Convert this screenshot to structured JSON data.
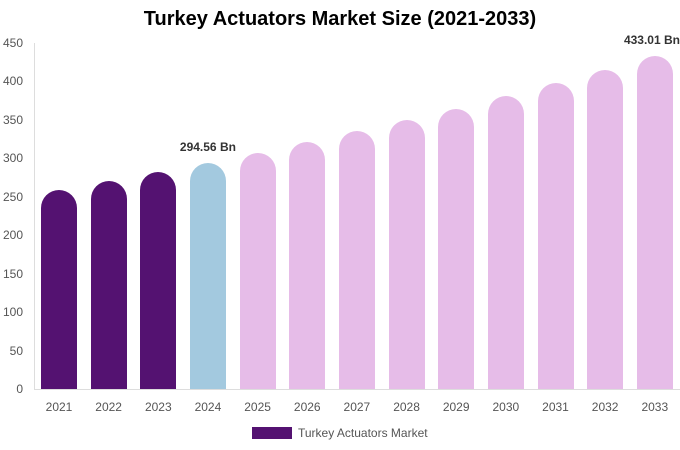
{
  "title": "Turkey Actuators Market Size (2021-2033)",
  "colors": {
    "historical": "#541271",
    "base_year": "#a3c9df",
    "forecast": "#e6bce8",
    "axis": "#dddddd",
    "tick_text": "#555555"
  },
  "yaxis": {
    "ticks": [
      "0",
      "50",
      "100",
      "150",
      "200",
      "250",
      "300",
      "350",
      "400",
      "450"
    ]
  },
  "legend": {
    "label": "Turkey Actuators Market"
  },
  "data_labels": {
    "y2024": "294.56 Bn",
    "y2033": "433.01 Bn"
  },
  "chart_data": {
    "type": "bar",
    "title": "Turkey Actuators Market Size (2021-2033)",
    "xlabel": "",
    "ylabel": "",
    "ylim": [
      0,
      450
    ],
    "grid": false,
    "legend_position": "bottom",
    "categories": [
      "2021",
      "2022",
      "2023",
      "2024",
      "2025",
      "2026",
      "2027",
      "2028",
      "2029",
      "2030",
      "2031",
      "2032",
      "2033"
    ],
    "series": [
      {
        "name": "Turkey Actuators Market",
        "values": [
          259.1,
          270.4,
          282.2,
          294.56,
          307.4,
          320.9,
          334.9,
          349.5,
          364.8,
          380.8,
          397.4,
          414.8,
          433.01
        ],
        "segments": [
          "historical",
          "historical",
          "historical",
          "base_year",
          "forecast",
          "forecast",
          "forecast",
          "forecast",
          "forecast",
          "forecast",
          "forecast",
          "forecast",
          "forecast"
        ]
      }
    ],
    "annotations": [
      {
        "category": "2024",
        "text": "294.56 Bn"
      },
      {
        "category": "2033",
        "text": "433.01 Bn"
      }
    ]
  }
}
